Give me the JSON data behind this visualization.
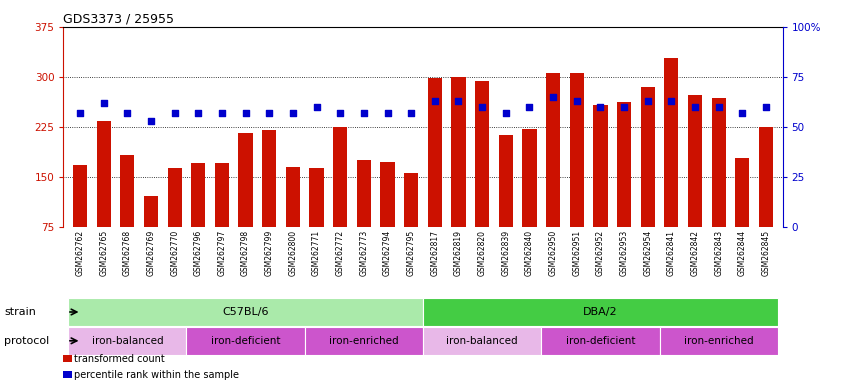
{
  "title": "GDS3373 / 25955",
  "samples": [
    "GSM262762",
    "GSM262765",
    "GSM262768",
    "GSM262769",
    "GSM262770",
    "GSM262796",
    "GSM262797",
    "GSM262798",
    "GSM262799",
    "GSM262800",
    "GSM262771",
    "GSM262772",
    "GSM262773",
    "GSM262794",
    "GSM262795",
    "GSM262817",
    "GSM262819",
    "GSM262820",
    "GSM262839",
    "GSM262840",
    "GSM262950",
    "GSM262951",
    "GSM262952",
    "GSM262953",
    "GSM262954",
    "GSM262841",
    "GSM262842",
    "GSM262843",
    "GSM262844",
    "GSM262845"
  ],
  "bar_values": [
    167,
    233,
    183,
    121,
    163,
    170,
    170,
    215,
    220,
    165,
    163,
    225,
    175,
    172,
    155,
    298,
    300,
    293,
    213,
    222,
    305,
    305,
    258,
    262,
    285,
    328,
    272,
    268,
    178,
    225
  ],
  "percentile_values": [
    57,
    62,
    57,
    53,
    57,
    57,
    57,
    57,
    57,
    57,
    60,
    57,
    57,
    57,
    57,
    63,
    63,
    60,
    57,
    60,
    65,
    63,
    60,
    60,
    63,
    63,
    60,
    60,
    57,
    60
  ],
  "ylim_left": [
    75,
    375
  ],
  "yticks_left": [
    75,
    150,
    225,
    300,
    375
  ],
  "yticks_right": [
    0,
    25,
    50,
    75,
    100
  ],
  "ytick_labels_right": [
    "0",
    "25",
    "50",
    "75",
    "100%"
  ],
  "bar_color": "#cc1100",
  "dot_color": "#0000cc",
  "strain_groups": [
    {
      "label": "C57BL/6",
      "start": 0,
      "end": 15,
      "color": "#aaeaaa"
    },
    {
      "label": "DBA/2",
      "start": 15,
      "end": 30,
      "color": "#44cc44"
    }
  ],
  "protocol_groups": [
    {
      "label": "iron-balanced",
      "start": 0,
      "end": 5,
      "color": "#e8b8e8"
    },
    {
      "label": "iron-deficient",
      "start": 5,
      "end": 10,
      "color": "#cc55cc"
    },
    {
      "label": "iron-enriched",
      "start": 10,
      "end": 15,
      "color": "#cc55cc"
    },
    {
      "label": "iron-balanced",
      "start": 15,
      "end": 20,
      "color": "#e8b8e8"
    },
    {
      "label": "iron-deficient",
      "start": 20,
      "end": 25,
      "color": "#cc55cc"
    },
    {
      "label": "iron-enriched",
      "start": 25,
      "end": 30,
      "color": "#cc55cc"
    }
  ]
}
